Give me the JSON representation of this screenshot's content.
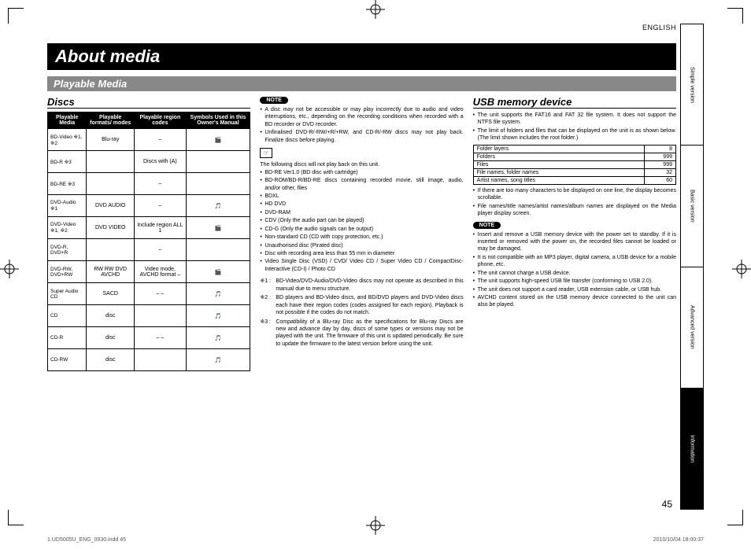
{
  "lang": "ENGLISH",
  "tabs": [
    "Simple version",
    "Basic version",
    "Advanced version",
    "Information"
  ],
  "active_tab": 3,
  "title": "About media",
  "subtitle": "Playable Media",
  "page_num": "45",
  "footer_left": "1.UD5005U_ENG_0930.indd   45",
  "footer_right": "2010/10/04   18:00:37",
  "discs": {
    "heading": "Discs",
    "headers": [
      "Playable Media",
      "Playable formats/ modes",
      "Playable region codes",
      "Symbols Used in this Owner's Manual"
    ],
    "rows": [
      {
        "media": "BD-Video\n※1, ※2",
        "fmt": "Blu-ray",
        "region": "–",
        "sym": "🎬"
      },
      {
        "media": "BD-R\n※3",
        "fmt": "",
        "region": "Discs with (A)",
        "sym": ""
      },
      {
        "media": "BD-RE\n※3",
        "fmt": "",
        "region": "–",
        "sym": ""
      },
      {
        "media": "DVD-Audio\n※1",
        "fmt": "DVD AUDIO",
        "region": "–",
        "sym": "🎵"
      },
      {
        "media": "DVD-Video\n※1, ※2",
        "fmt": "DVD VIDEO",
        "region": "Include region ALL 1",
        "sym": "🎬"
      },
      {
        "media": "DVD-R,\nDVD+R",
        "fmt": "",
        "region": "–",
        "sym": ""
      },
      {
        "media": "DVD-RW,\nDVD+RW",
        "fmt": "RW RW DVD AVCHD",
        "region": "Video mode, AVCHD format –",
        "sym": "🎬"
      },
      {
        "media": "Super Audio\nCD",
        "fmt": "SACD",
        "region": "– –",
        "sym": "🎵"
      },
      {
        "media": "CD",
        "fmt": "disc",
        "region": "",
        "sym": "🎵"
      },
      {
        "media": "CD-R",
        "fmt": "disc",
        "region": "– –",
        "sym": "🎵"
      },
      {
        "media": "CD-RW",
        "fmt": "disc",
        "region": "",
        "sym": "🎵"
      }
    ]
  },
  "col2": {
    "note_label": "NOTE",
    "notes1": [
      "A disc may not be accessible or may play incorrectly due to audio and video interruptions, etc., depending on the recording conditions when recorded with a BD recorder or DVD recorder.",
      "Unfinalised DVD-R/-RW/+R/+RW, and CD-R/-RW discs may not play back. Finalize discs before playing."
    ],
    "hand": "☞",
    "intro": "The following discs will not play back on this unit.",
    "list": [
      "BD-RE Ver1.0 (BD disc with cartridge)",
      "BD-ROM/BD-R/BD-RE discs containing recorded movie, still image, audio, and/or other, files",
      "BDXL",
      "HD DVD",
      "DVD-RAM",
      "CDV (Only the audio part can be played)",
      "CD-G (Only the audio signals can be output)",
      "Non-standard CD (CD with copy protection, etc.)",
      "Unauthorised disc (Pirated disc)",
      "Disc with recording area less than 55 mm in diameter",
      "Video Single Disc (VSD) / CVD/ Video CD / Super Video CD / CompactDisc-Interactive (CD-I) / Photo CD"
    ],
    "footnotes": [
      {
        "n": "※1 :",
        "t": "BD-Video/DVD-Audio/DVD-Video discs may not operate as described in this manual due to menu structure."
      },
      {
        "n": "※2 :",
        "t": "BD players and BD-Video discs, and BD/DVD players and DVD-Video discs each have their region codes (codes assigned for each region). Playback is not possible if the codes do not match."
      },
      {
        "n": "※3 :",
        "t": "Compatibility of a Blu-ray Disc as the specifications for Blu-ray Discs are new and advance day by day, discs of some types or versions may not be played with the unit.\nThe firmware of this unit is updated periodically. Be sure to update the firmware to the latest version before using the unit."
      }
    ]
  },
  "col3": {
    "heading": "USB memory device",
    "top": [
      "The unit supports the FAT16 and FAT 32 file system. It does not support the NTFS file system.",
      "The limit of folders and files that can be displayed on the unit is as shown below. (The limit shown includes the root folder.)"
    ],
    "limits": [
      [
        "Folder layers",
        "8"
      ],
      [
        "Folders",
        "999"
      ],
      [
        "Files",
        "999"
      ],
      [
        "File names, folder names",
        "32"
      ],
      [
        "Artist names, song titles",
        "60"
      ]
    ],
    "mid": [
      "If there are too many characters to be displayed on one line, the display becomes scrollable.",
      "File names/title names/artist names/album names are displayed on the Media player display screen."
    ],
    "note_label": "NOTE",
    "notes": [
      "Insert and remove a USB memory device with the power set to standby. If it is inserted or removed with the power on, the recorded files cannot be loaded or may be damaged.",
      "It is not compatible with an MP3 player, digital camera, a USB device for a mobile phone, etc.",
      "The unit cannot charge a USB device.",
      "The unit supports high-speed USB file transfer (conforming to USB 2.0).",
      "The unit does not support a card reader, USB extension cable, or USB hub.",
      "AVCHD content stored on the USB memory device connected to the unit can also be played."
    ]
  }
}
